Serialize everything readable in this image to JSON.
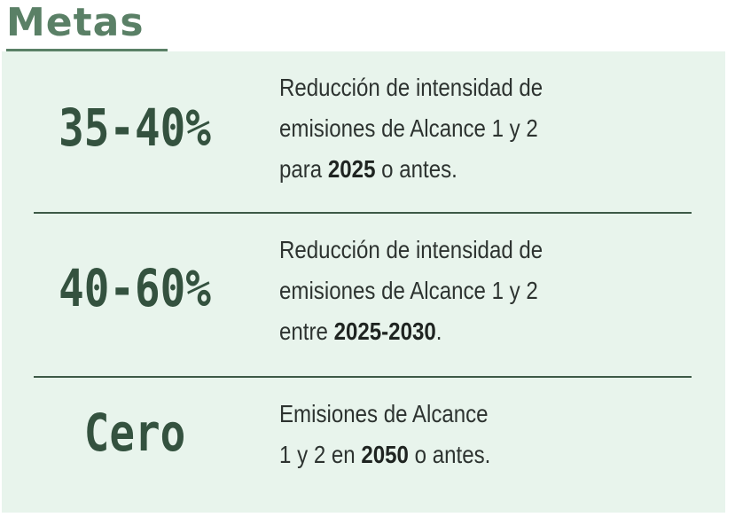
{
  "heading": "Metas",
  "goals": [
    {
      "value": "35-40%",
      "line1": "Reducción de intensidad de",
      "line2": "emisiones de Alcance 1 y 2",
      "line3_pre": "para ",
      "line3_bold": "2025",
      "line3_post": " o antes."
    },
    {
      "value": "40-60%",
      "line1": "Reducción de intensidad de",
      "line2": "emisiones de Alcance 1 y 2",
      "line3_pre": "entre ",
      "line3_bold": "2025-2030",
      "line3_post": "."
    },
    {
      "value": "Cero",
      "line1": "Emisiones de Alcance",
      "line2_pre": "1 y 2 en ",
      "line2_bold": "2050",
      "line2_post": " o antes."
    }
  ],
  "colors": {
    "heading": "#5a8066",
    "panel": "#e8f4ec",
    "value": "#34523f",
    "divider": "#3d5a47"
  }
}
